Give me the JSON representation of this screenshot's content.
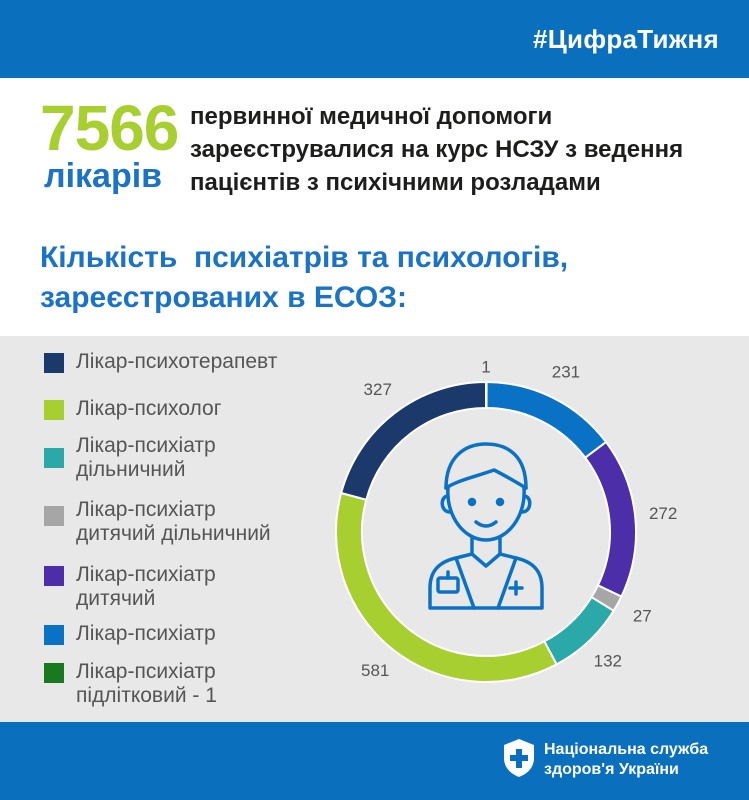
{
  "header": {
    "hashtag": "#ЦифраТижня"
  },
  "headline": {
    "number": "7566",
    "unit": "лікарів",
    "lines": [
      "первинної медичної допомоги",
      "зареєструвалися на курс НСЗУ з ведення",
      "пацієнтів з психічними розладами"
    ]
  },
  "section_title_lines": [
    "Кількість  психіатрів та психологів,",
    "зареєстрованих в ЕСОЗ:"
  ],
  "legend": [
    {
      "lines": [
        "Лікар-психотерапевт"
      ],
      "color": "#1b3a6b"
    },
    {
      "lines": [
        "Лікар-психолог"
      ],
      "color": "#a8cf30"
    },
    {
      "lines": [
        "Лікар-психіатр",
        "дільничний"
      ],
      "color": "#2aa9a8"
    },
    {
      "lines": [
        "Лікар-психіатр",
        "дитячий дільничний"
      ],
      "color": "#a6a6a6"
    },
    {
      "lines": [
        "Лікар-психіатр",
        "дитячий"
      ],
      "color": "#4b2ea8"
    },
    {
      "lines": [
        "Лікар-психіатр"
      ],
      "color": "#0a72c4"
    },
    {
      "lines": [
        "Лікар-психіатр",
        "підлітковий - 1"
      ],
      "color": "#187a1f"
    }
  ],
  "chart_data": {
    "type": "pie",
    "donut": true,
    "order": "clockwise from top",
    "slices": [
      {
        "label": "Лікар-психіатр підлітковий",
        "value": 1,
        "value_label": "1",
        "color": "#187a1f"
      },
      {
        "label": "Лікар-психіатр",
        "value": 231,
        "value_label": "231",
        "color": "#0a72c4"
      },
      {
        "label": "Лікар-психіатр дитячий",
        "value": 272,
        "value_label": "272",
        "color": "#4b2ea8"
      },
      {
        "label": "Лікар-психіатр дитячий дільничний",
        "value": 27,
        "value_label": "27",
        "color": "#a6a6a6"
      },
      {
        "label": "Лікар-психіатр дільничний",
        "value": 132,
        "value_label": "132",
        "color": "#2aa9a8"
      },
      {
        "label": "Лікар-психолог",
        "value": 581,
        "value_label": "581",
        "color": "#a8cf30"
      },
      {
        "label": "Лікар-психотерапевт",
        "value": 327,
        "value_label": "327",
        "color": "#1b3a6b"
      }
    ],
    "center_icon": "doctor-icon",
    "legend_position": "left"
  },
  "footer": {
    "org_lines": [
      "Національна служба",
      "здоров'я України"
    ],
    "logo_icon": "shield-cross-icon"
  }
}
